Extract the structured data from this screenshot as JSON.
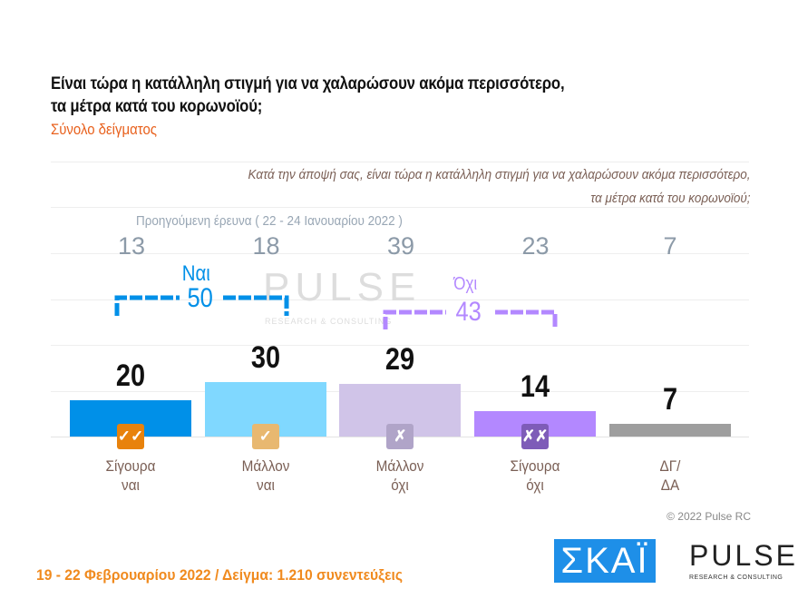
{
  "header": {
    "title": "Είναι τώρα η κατάλληλη στιγμή για να χαλαρώσουν ακόμα περισσότερο, τα μέτρα κατά του κορωνοϊού;",
    "subtitle": "Σύνολο δείγματος",
    "question_line1": "Κατά την άποψή σας, είναι τώρα η κατάλληλη στιγμή για να χαλαρώσουν ακόμα περισσότερο,",
    "question_line2": "τα μέτρα κατά του κορωνοϊού;"
  },
  "chart_data": {
    "type": "bar",
    "categories": [
      "Σίγουρα ναι",
      "Μάλλον ναι",
      "Μάλλον όχι",
      "Σίγουρα όχι",
      "ΔΓ/ΔΑ"
    ],
    "category_lines": [
      [
        "Σίγουρα",
        "ναι"
      ],
      [
        "Μάλλον",
        "ναι"
      ],
      [
        "Μάλλον",
        "όχι"
      ],
      [
        "Σίγουρα",
        "όχι"
      ],
      [
        "ΔΓ/",
        "ΔΑ"
      ]
    ],
    "values": [
      20,
      30,
      29,
      14,
      7
    ],
    "colors": [
      "#0090e8",
      "#80d8ff",
      "#d0c4e8",
      "#b388ff",
      "#9e9e9e"
    ],
    "icons": [
      "double-check-icon",
      "check-icon",
      "cross-icon",
      "double-cross-icon",
      null
    ],
    "icon_glyphs": [
      "✓✓",
      "✓",
      "✗",
      "✗✗",
      null
    ],
    "icon_colors": [
      "#e8820c",
      "#e8b870",
      "#b0a4c8",
      "#7e5cb8",
      null
    ],
    "ylim": [
      0,
      100
    ],
    "grid": true,
    "previous_survey": {
      "label": "Προηγούμενη έρευνα  ( 22 - 24  Ιανουαρίου  2022 )",
      "values": [
        13,
        18,
        39,
        23,
        7
      ]
    },
    "groups": [
      {
        "label": "Ναι",
        "total": "50",
        "color": "#0090e8"
      },
      {
        "label": "Όχι",
        "total": "43",
        "color": "#b388ff"
      }
    ]
  },
  "watermark": {
    "text": "PULSE",
    "sub": "RESEARCH & CONSULTING"
  },
  "footer": {
    "copyright": "© 2022 Pulse RC",
    "survey_info": "19 - 22  Φεβρουαρίου  2022  /  Δείγμα:  1.210 συνεντεύξεις",
    "logo_skai": "ΣΚΑΪ",
    "logo_pulse": "PULSE",
    "logo_pulse_sub": "RESEARCH & CONSULTING"
  }
}
